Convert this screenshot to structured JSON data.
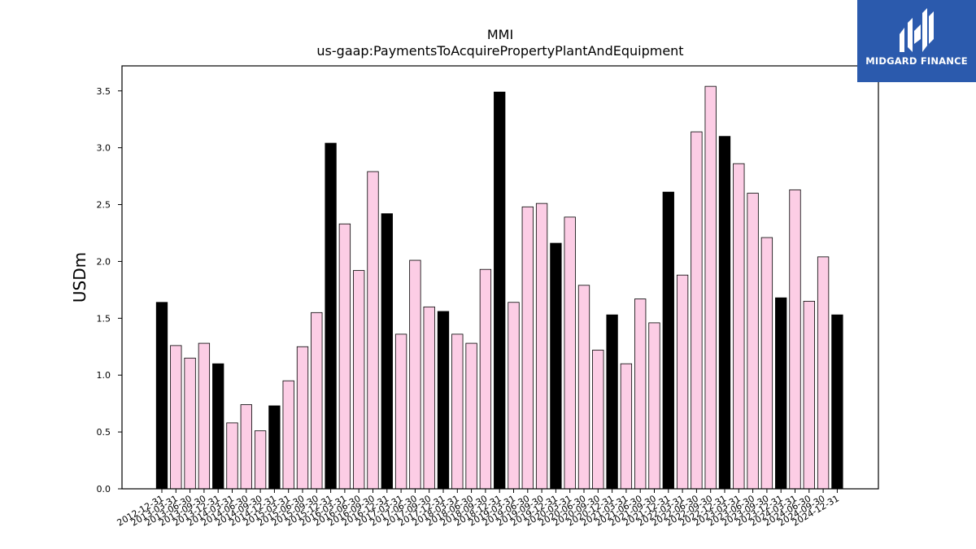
{
  "logo": {
    "text": "MIDGARD FINANCE",
    "background": "#2b5aad"
  },
  "chart_data": {
    "type": "bar",
    "title": "MMI",
    "subtitle": "us-gaap:PaymentsToAcquirePropertyPlantAndEquipment",
    "xlabel": "",
    "ylabel": "USDm",
    "ylim": [
      0,
      3.72
    ],
    "yticks": [
      0.0,
      0.5,
      1.0,
      1.5,
      2.0,
      2.5,
      3.0,
      3.5
    ],
    "ytick_labels": [
      "0.0",
      "0.5",
      "1.0",
      "1.5",
      "2.0",
      "2.5",
      "3.0",
      "3.5"
    ],
    "grid": false,
    "colors": {
      "annual": "#000000",
      "quarterly": "#fccde5",
      "edge": "#000000"
    },
    "categories": [
      "2012-12-31",
      "2013-03-31",
      "2013-06-30",
      "2013-09-30",
      "2013-12-31",
      "2014-03-31",
      "2014-06-30",
      "2014-09-30",
      "2014-12-31",
      "2015-03-31",
      "2015-06-30",
      "2015-09-30",
      "2015-12-31",
      "2016-03-31",
      "2016-06-30",
      "2016-09-30",
      "2016-12-31",
      "2017-03-31",
      "2017-06-30",
      "2017-09-30",
      "2017-12-31",
      "2018-03-31",
      "2018-06-30",
      "2018-09-30",
      "2018-12-31",
      "2019-03-31",
      "2019-06-30",
      "2019-09-30",
      "2019-12-31",
      "2020-03-31",
      "2020-06-30",
      "2020-09-30",
      "2020-12-31",
      "2021-03-31",
      "2021-06-30",
      "2021-09-30",
      "2021-12-31",
      "2022-03-31",
      "2022-06-30",
      "2022-09-30",
      "2022-12-31",
      "2023-03-31",
      "2023-06-30",
      "2023-09-30",
      "2023-12-31",
      "2024-03-31",
      "2024-06-30",
      "2024-09-30",
      "2024-12-31"
    ],
    "values": [
      1.64,
      1.26,
      1.15,
      1.28,
      1.1,
      0.58,
      0.74,
      0.51,
      0.73,
      0.95,
      1.25,
      1.55,
      3.04,
      2.33,
      1.92,
      2.79,
      2.42,
      1.36,
      2.01,
      1.6,
      1.56,
      1.36,
      1.28,
      1.93,
      3.49,
      1.64,
      2.48,
      2.51,
      2.16,
      2.39,
      1.79,
      1.22,
      1.53,
      1.1,
      1.67,
      1.46,
      2.61,
      1.88,
      3.14,
      3.54,
      3.1,
      2.86,
      2.6,
      2.21,
      1.68,
      2.63,
      1.65,
      2.04,
      1.53
    ],
    "is_annual": [
      true,
      false,
      false,
      false,
      true,
      false,
      false,
      false,
      true,
      false,
      false,
      false,
      true,
      false,
      false,
      false,
      true,
      false,
      false,
      false,
      true,
      false,
      false,
      false,
      true,
      false,
      false,
      false,
      true,
      false,
      false,
      false,
      true,
      false,
      false,
      false,
      true,
      false,
      false,
      false,
      true,
      false,
      false,
      false,
      true,
      false,
      false,
      false,
      true
    ]
  }
}
